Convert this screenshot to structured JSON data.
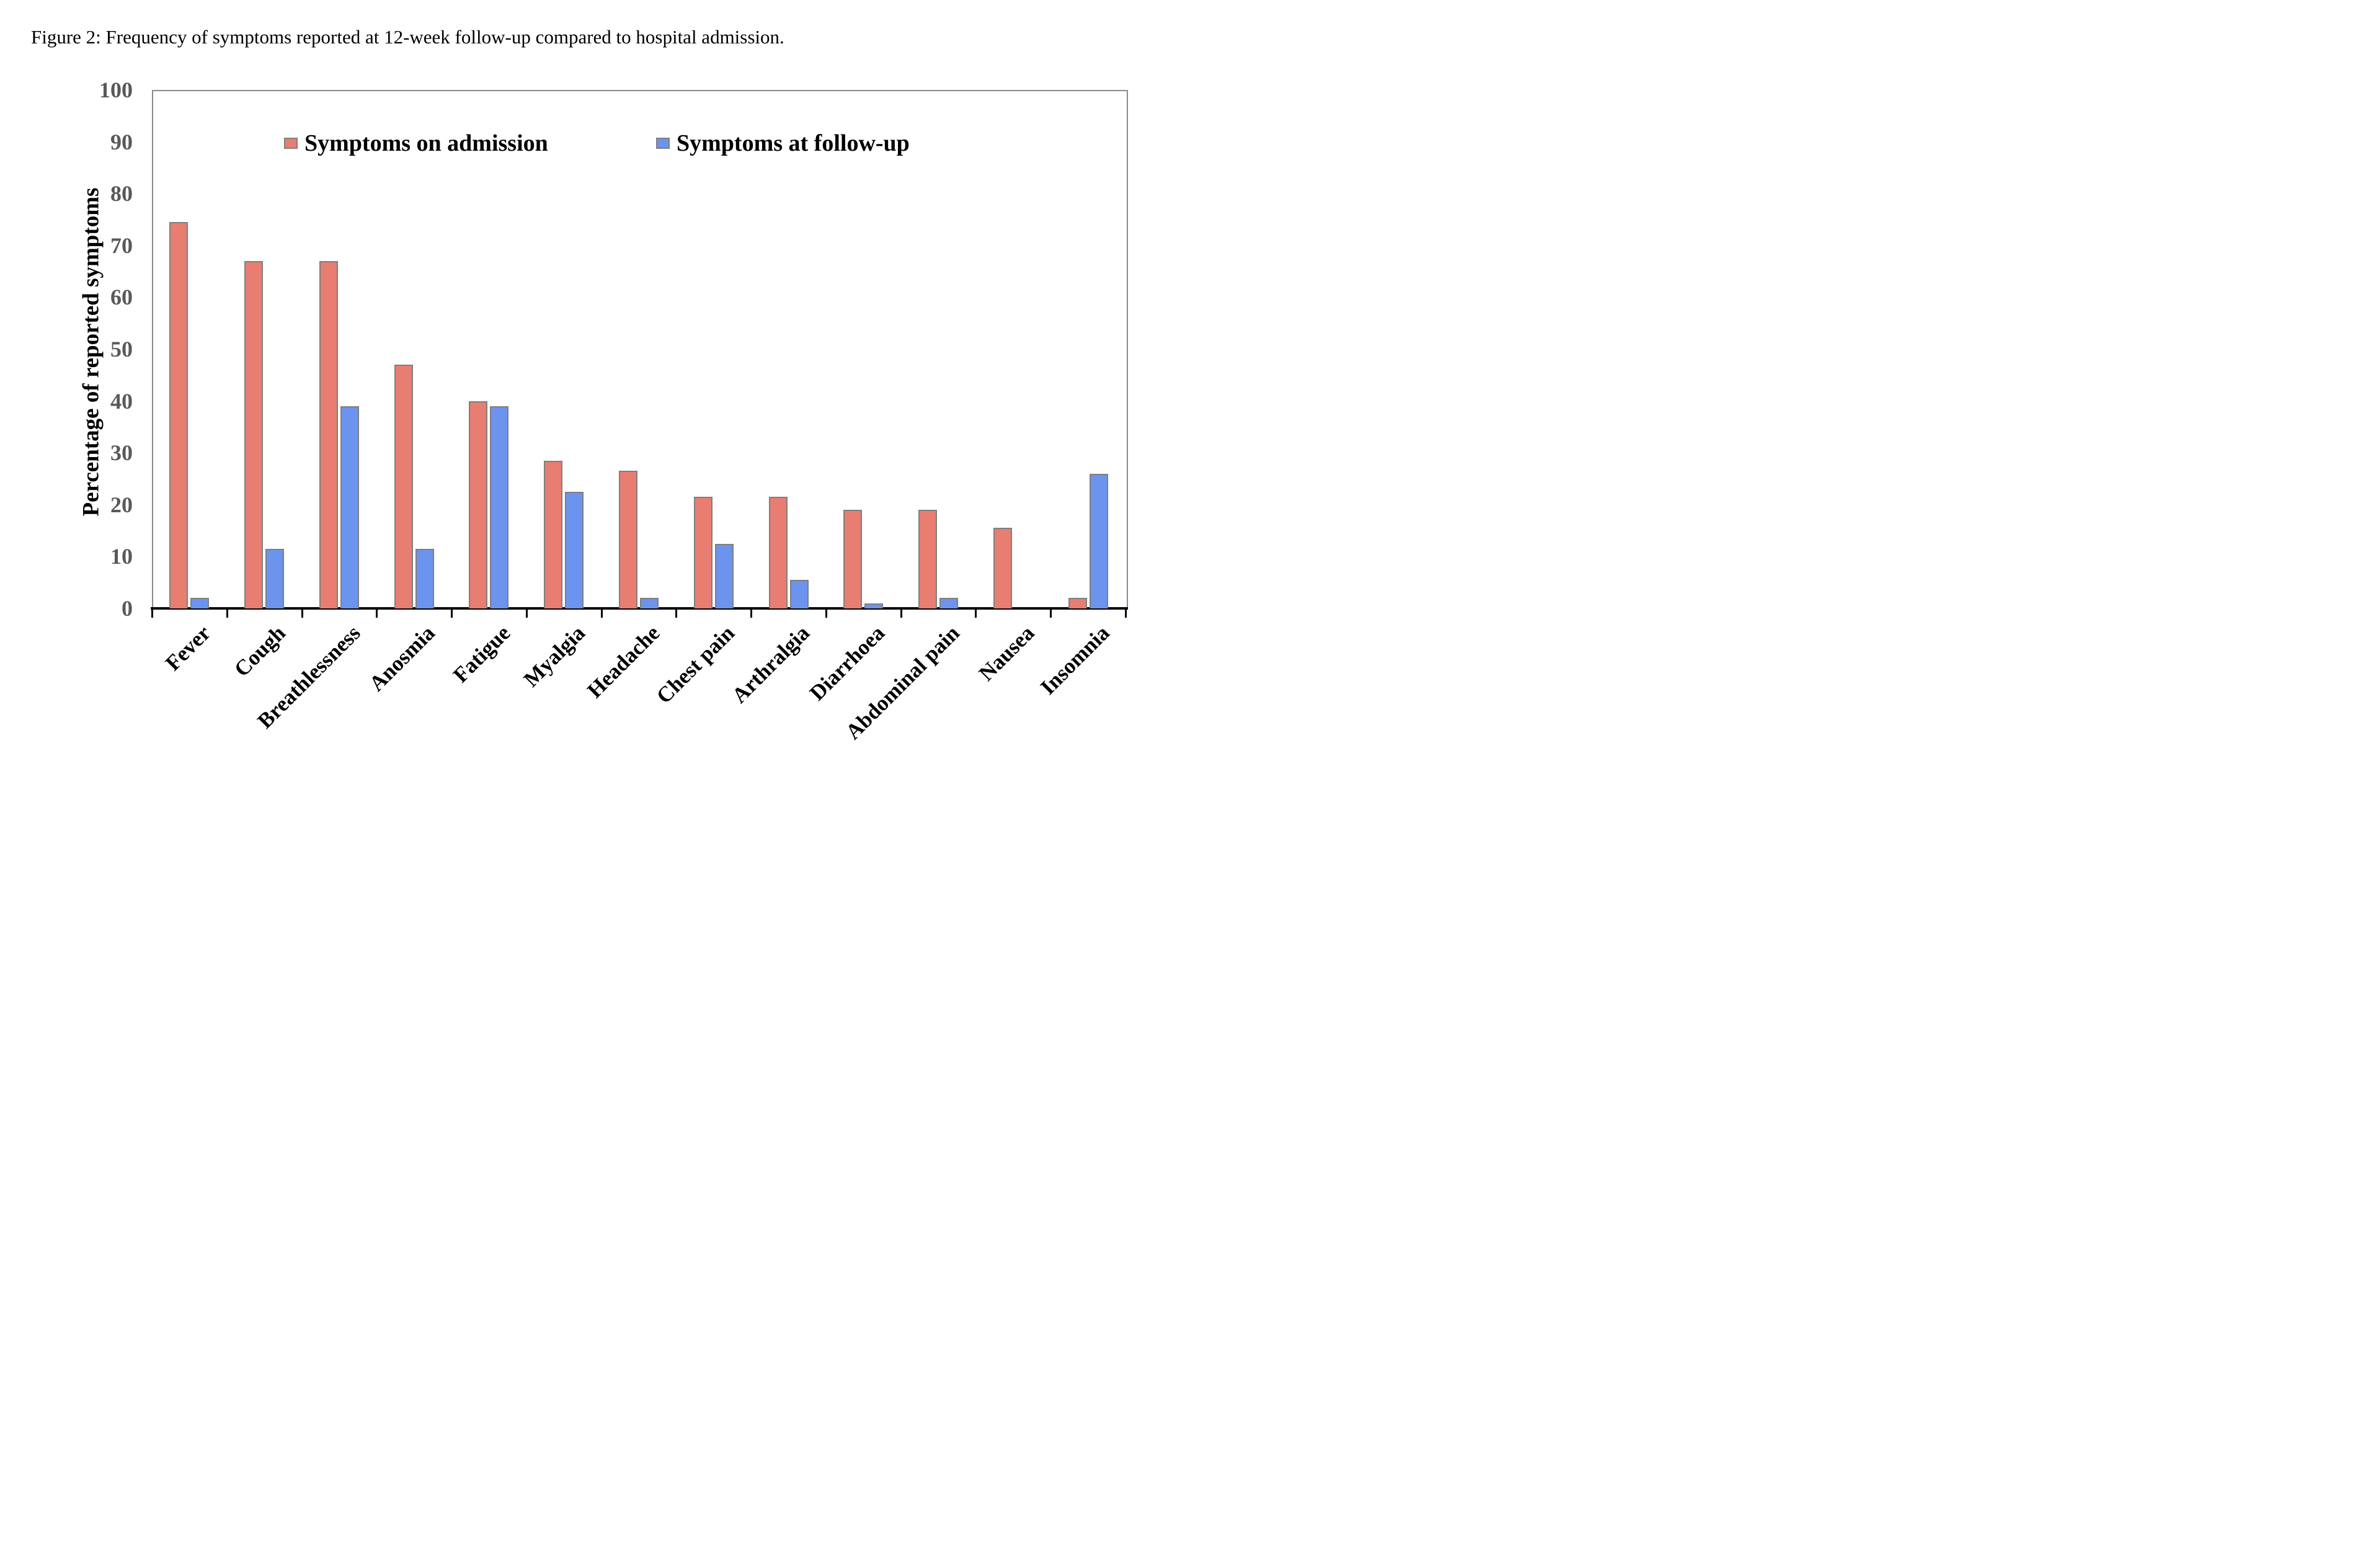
{
  "page": {
    "title": "Figure 2: Frequency of symptoms reported at 12-week follow-up compared to hospital admission."
  },
  "chart_data": {
    "type": "bar",
    "title": "Figure 2: Frequency of symptoms reported at 12-week follow-up compared to hospital admission.",
    "ylabel": "Percentage of reported symptoms",
    "xlabel": "",
    "ylim": [
      0,
      100
    ],
    "yticks": [
      0,
      10,
      20,
      30,
      40,
      50,
      60,
      70,
      80,
      90,
      100
    ],
    "grid": false,
    "legend_position": "inside-top",
    "categories": [
      "Fever",
      "Cough",
      "Breathlessness",
      "Anosmia",
      "Fatigue",
      "Myalgia",
      "Headache",
      "Chest pain",
      "Arthralgia",
      "Diarrhoea",
      "Abdominal pain",
      "Nausea",
      "Insomnia"
    ],
    "series": [
      {
        "name": "Symptoms on admission",
        "color": "#E87D72",
        "values": [
          74.5,
          67,
          67,
          47,
          40,
          28.5,
          26.5,
          21.5,
          21.5,
          19,
          19,
          15.5,
          2
        ]
      },
      {
        "name": "Symptoms at follow-up",
        "color": "#6C93EE",
        "values": [
          2,
          11.5,
          39,
          11.5,
          39,
          22.5,
          2,
          12.5,
          5.5,
          1,
          2,
          0,
          26
        ]
      }
    ],
    "colors": {
      "axis_line": "#000000",
      "frame_border": "#8a8a8a",
      "bar_border": "#7f7f7f",
      "ytick_text": "#595959"
    }
  }
}
